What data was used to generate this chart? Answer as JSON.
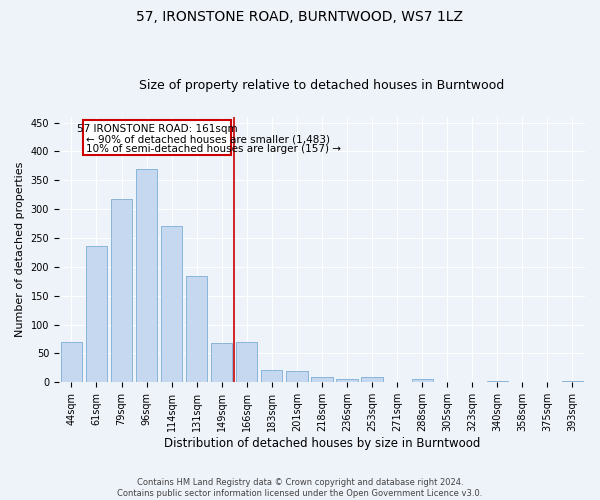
{
  "title": "57, IRONSTONE ROAD, BURNTWOOD, WS7 1LZ",
  "subtitle": "Size of property relative to detached houses in Burntwood",
  "xlabel": "Distribution of detached houses by size in Burntwood",
  "ylabel": "Number of detached properties",
  "categories": [
    "44sqm",
    "61sqm",
    "79sqm",
    "96sqm",
    "114sqm",
    "131sqm",
    "149sqm",
    "166sqm",
    "183sqm",
    "201sqm",
    "218sqm",
    "236sqm",
    "253sqm",
    "271sqm",
    "288sqm",
    "305sqm",
    "323sqm",
    "340sqm",
    "358sqm",
    "375sqm",
    "393sqm"
  ],
  "values": [
    70,
    237,
    317,
    370,
    270,
    185,
    68,
    70,
    22,
    20,
    10,
    5,
    10,
    0,
    5,
    0,
    0,
    3,
    0,
    0,
    3
  ],
  "bar_color": "#c5d8f0",
  "bar_edge_color": "#7aaed6",
  "highlight_line_x_index": 6.5,
  "annotation_text_line1": "57 IRONSTONE ROAD: 161sqm",
  "annotation_text_line2": "← 90% of detached houses are smaller (1,483)",
  "annotation_text_line3": "10% of semi-detached houses are larger (157) →",
  "ylim": [
    0,
    460
  ],
  "xlim": [
    -0.5,
    20.5
  ],
  "red_line_color": "#cc0000",
  "annotation_box_color": "#cc0000",
  "footer_line1": "Contains HM Land Registry data © Crown copyright and database right 2024.",
  "footer_line2": "Contains public sector information licensed under the Open Government Licence v3.0.",
  "background_color": "#eef2f9",
  "grid_color": "#ffffff",
  "title_fontsize": 10,
  "subtitle_fontsize": 9,
  "tick_fontsize": 7,
  "ylabel_fontsize": 8,
  "xlabel_fontsize": 8.5,
  "annotation_fontsize": 7.5,
  "footer_fontsize": 6
}
